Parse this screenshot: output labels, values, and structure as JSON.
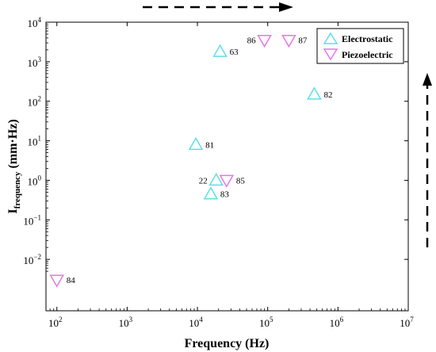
{
  "chart_data": {
    "type": "scatter",
    "xscale": "log",
    "yscale": "log",
    "xlim": [
      70,
      10000000
    ],
    "ylim": [
      0.0005,
      10000
    ],
    "xlabel": "Frequency (Hz)",
    "ylabel_main": "I",
    "ylabel_sub": "frequency",
    "ylabel_unit": " (mm·Hz)",
    "grid": false,
    "legend_position": "top-right",
    "x_ticks": [
      {
        "value": 100,
        "base": "10",
        "exp": "2"
      },
      {
        "value": 1000,
        "base": "10",
        "exp": "3"
      },
      {
        "value": 10000,
        "base": "10",
        "exp": "4"
      },
      {
        "value": 100000,
        "base": "10",
        "exp": "5"
      },
      {
        "value": 1000000,
        "base": "10",
        "exp": "6"
      },
      {
        "value": 10000000,
        "base": "10",
        "exp": "7"
      }
    ],
    "y_ticks": [
      {
        "value": 0.01,
        "base": "10",
        "exp": "−2"
      },
      {
        "value": 0.1,
        "base": "10",
        "exp": "−1"
      },
      {
        "value": 1,
        "base": "10",
        "exp": "0"
      },
      {
        "value": 10,
        "base": "10",
        "exp": "1"
      },
      {
        "value": 100,
        "base": "10",
        "exp": "2"
      },
      {
        "value": 1000,
        "base": "10",
        "exp": "3"
      },
      {
        "value": 10000,
        "base": "10",
        "exp": "4"
      }
    ],
    "series": [
      {
        "name": "Electrostatic",
        "marker": "triangle-up",
        "color": "#5CE0E6",
        "points": [
          {
            "x": 21000,
            "y": 1800,
            "label": "63",
            "label_side": "right"
          },
          {
            "x": 460000,
            "y": 150,
            "label": "82",
            "label_side": "right"
          },
          {
            "x": 9500,
            "y": 8,
            "label": "81",
            "label_side": "right"
          },
          {
            "x": 18500,
            "y": 1.0,
            "label": "22",
            "label_side": "left"
          },
          {
            "x": 15500,
            "y": 0.45,
            "label": "83",
            "label_side": "right"
          }
        ]
      },
      {
        "name": "Piezoelectric",
        "marker": "triangle-down",
        "color": "#E676E6",
        "points": [
          {
            "x": 90000,
            "y": 3500,
            "label": "86",
            "label_side": "left"
          },
          {
            "x": 200000,
            "y": 3500,
            "label": "87",
            "label_side": "right"
          },
          {
            "x": 26000,
            "y": 1.0,
            "label": "85",
            "label_side": "right"
          },
          {
            "x": 100,
            "y": 0.003,
            "label": "84",
            "label_side": "right"
          }
        ]
      }
    ],
    "annotations": {
      "top_arrow": "dashed arrow pointing right",
      "right_arrow": "dashed arrow pointing up"
    }
  }
}
